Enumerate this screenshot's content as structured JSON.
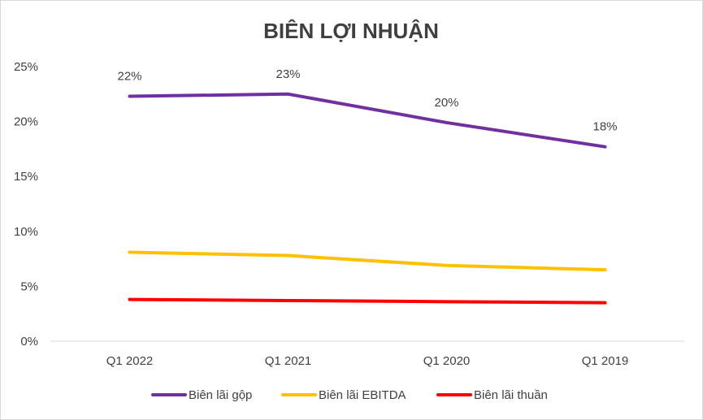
{
  "chart_data": {
    "type": "line",
    "title": "BIÊN LỢI NHUẬN",
    "categories": [
      "Q1 2022",
      "Q1 2021",
      "Q1 2020",
      "Q1 2019"
    ],
    "ylim": [
      0,
      25
    ],
    "yticks": [
      0,
      5,
      10,
      15,
      20,
      25
    ],
    "ytick_labels": [
      "0%",
      "5%",
      "10%",
      "15%",
      "20%",
      "25%"
    ],
    "grid": false,
    "legend_position": "bottom",
    "series": [
      {
        "name": "Biên lãi gộp",
        "values": [
          22.3,
          22.5,
          19.9,
          17.7
        ],
        "data_labels": [
          "22%",
          "23%",
          "20%",
          "18%"
        ],
        "color": "#7030a0"
      },
      {
        "name": "Biên lãi EBITDA",
        "values": [
          8.1,
          7.8,
          6.9,
          6.5
        ],
        "color": "#ffc000"
      },
      {
        "name": "Biên lãi thuần",
        "values": [
          3.8,
          3.7,
          3.6,
          3.5
        ],
        "color": "#ff0000"
      }
    ]
  }
}
